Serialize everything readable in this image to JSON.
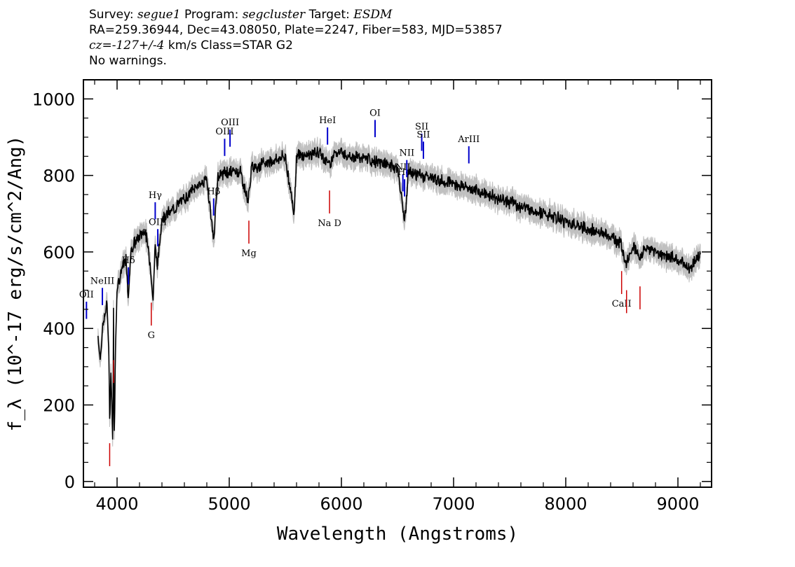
{
  "header": {
    "survey_label": "Survey:",
    "survey": "segue1",
    "program_label": "Program:",
    "program": "segcluster",
    "target_label": "Target:",
    "target": "ESDM",
    "line2": "RA=259.36944, Dec=43.08050, Plate=2247, Fiber=583, MJD=53857",
    "cz_label": "cz=",
    "cz_value": "-127+/-4",
    "cz_rest": " km/s Class=STAR G2",
    "warnings": "No warnings."
  },
  "chart_data": {
    "type": "line",
    "xlabel": "Wavelength (Angstroms)",
    "ylabel": "f_λ (10^-17 erg/s/cm^2/Ang)",
    "xlim": [
      3700,
      9300
    ],
    "ylim": [
      -15,
      1050
    ],
    "xticks": [
      4000,
      5000,
      6000,
      7000,
      8000,
      9000
    ],
    "yticks": [
      0,
      200,
      400,
      600,
      800,
      1000
    ],
    "grid": false,
    "colors": {
      "spectrum": "#000000",
      "error_band": "#c0c0c0",
      "emission_marker": "#0000cc",
      "absorption_marker": "#cc0000"
    },
    "series": [
      {
        "x": [
          3830,
          3850,
          3870,
          3890,
          3910,
          3925,
          3935,
          3945,
          3955,
          3962,
          3968,
          3972,
          3978,
          3985,
          4000,
          4020,
          4050,
          4080,
          4101,
          4120,
          4150,
          4200,
          4250,
          4300,
          4320,
          4340,
          4360,
          4400,
          4450,
          4500,
          4600,
          4700,
          4800,
          4861,
          4900,
          5000,
          5100,
          5167,
          5200,
          5300,
          5400,
          5500,
          5577,
          5600,
          5700,
          5800,
          5893,
          5950,
          6000,
          6100,
          6200,
          6300,
          6400,
          6500,
          6563,
          6600,
          6700,
          6800,
          6900,
          7000,
          7100,
          7200,
          7300,
          7400,
          7500,
          7600,
          7700,
          7800,
          7900,
          8000,
          8100,
          8200,
          8300,
          8400,
          8498,
          8542,
          8600,
          8662,
          8700,
          8800,
          8900,
          9000,
          9050,
          9100,
          9150,
          9200
        ],
        "y": [
          380,
          320,
          400,
          430,
          470,
          350,
          150,
          300,
          180,
          80,
          450,
          200,
          120,
          350,
          510,
          530,
          560,
          580,
          470,
          600,
          620,
          640,
          660,
          560,
          470,
          620,
          560,
          690,
          700,
          710,
          740,
          770,
          790,
          630,
          800,
          810,
          810,
          730,
          820,
          830,
          840,
          850,
          700,
          850,
          855,
          860,
          830,
          865,
          860,
          850,
          845,
          835,
          830,
          820,
          680,
          810,
          800,
          795,
          785,
          780,
          770,
          760,
          750,
          740,
          730,
          720,
          710,
          700,
          690,
          680,
          670,
          660,
          650,
          640,
          620,
          570,
          620,
          580,
          610,
          600,
          590,
          580,
          570,
          560,
          575,
          595
        ]
      }
    ],
    "emission_lines": [
      {
        "label": "OII",
        "x": 3727
      },
      {
        "label": "NeIII",
        "x": 3869
      },
      {
        "label": "Hδ",
        "x": 4101
      },
      {
        "label": "Hγ",
        "x": 4340
      },
      {
        "label": "OIII",
        "x": 4363
      },
      {
        "label": "Hβ",
        "x": 4861
      },
      {
        "label": "OIII",
        "x": 4959
      },
      {
        "label": "OIII",
        "x": 5007
      },
      {
        "label": "HeI",
        "x": 5876
      },
      {
        "label": "OI",
        "x": 6300
      },
      {
        "label": "NII",
        "x": 6548
      },
      {
        "label": "Hα",
        "x": 6563
      },
      {
        "label": "NII",
        "x": 6583
      },
      {
        "label": "SII",
        "x": 6716
      },
      {
        "label": "SII",
        "x": 6731
      },
      {
        "label": "ArIII",
        "x": 7136
      }
    ],
    "absorption_lines": [
      {
        "label": "",
        "x": 3934
      },
      {
        "label": "",
        "x": 3969
      },
      {
        "label": "G",
        "x": 4305
      },
      {
        "label": "Mg",
        "x": 5175
      },
      {
        "label": "Na D",
        "x": 5894
      },
      {
        "label": "CaII",
        "x": 8498
      },
      {
        "label": "",
        "x": 8542
      },
      {
        "label": "",
        "x": 8662
      }
    ]
  }
}
